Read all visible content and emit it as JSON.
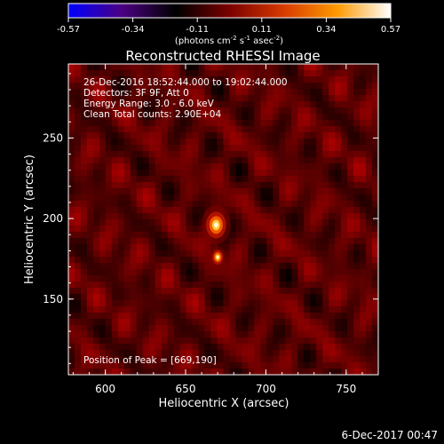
{
  "chart_data": {
    "type": "heatmap",
    "title": "Reconstructed RHESSI Image",
    "xlabel": "Heliocentric X (arcsec)",
    "ylabel": "Heliocentric Y (arcsec)",
    "xlim": [
      577,
      770
    ],
    "ylim": [
      103,
      296
    ],
    "x_ticks": [
      "600",
      "650",
      "700",
      "750"
    ],
    "y_ticks": [
      "150",
      "200",
      "250"
    ],
    "x_tick_values": [
      600,
      650,
      700,
      750
    ],
    "y_tick_values": [
      150,
      200,
      250
    ],
    "colorbar": {
      "min": -0.57,
      "max": 0.57,
      "tick_labels": [
        "-0.57",
        "-0.34",
        "-0.11",
        "0.11",
        "0.34",
        "0.57"
      ],
      "unit_label": "(photons cm",
      "unit_exp1": "-2",
      "unit_mid": " s",
      "unit_exp2": "-1",
      "unit_mid2": " asec",
      "unit_exp3": "-2",
      "unit_end": ")",
      "colormap": [
        "#0000ff",
        "#4b0082",
        "#000000",
        "#7a0000",
        "#d63a00",
        "#ff9a00",
        "#ffffff"
      ]
    },
    "info_lines": [
      "26-Dec-2016 18:52:44.000 to 19:02:44.000",
      "Detectors: 3F 9F, Att 0",
      "Energy Range: 3.0 - 6.0 keV",
      "Clean     Total counts: 2.90E+04"
    ],
    "peak_label": "Position of Peak = [669,190]",
    "sources": [
      {
        "x": 669,
        "y": 196,
        "peak": 1.0
      },
      {
        "x": 670,
        "y": 176,
        "peak": 0.55
      }
    ]
  },
  "footer_date": "6-Dec-2017 00:47"
}
